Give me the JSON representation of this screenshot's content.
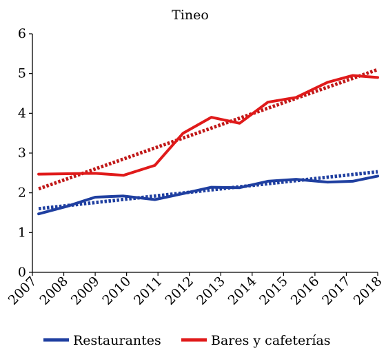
{
  "chart_data": {
    "type": "line",
    "title": "Tineo",
    "xlabel": "",
    "ylabel": "",
    "categories": [
      "2007",
      "2008",
      "2009",
      "2010",
      "2011",
      "2012",
      "2013",
      "2014",
      "2015",
      "2016",
      "2017",
      "2018"
    ],
    "x": [
      2007,
      2008,
      2009,
      2010,
      2011,
      2012,
      2013,
      2014,
      2015,
      2016,
      2017,
      2018
    ],
    "ylim": [
      0,
      6
    ],
    "yticks": [
      0,
      1,
      2,
      3,
      4,
      5,
      6
    ],
    "grid": false,
    "legend_position": "bottom",
    "series": [
      {
        "name": "Restaurantes",
        "color": "#1f3fa0",
        "style": "solid",
        "x": [
          2007.2,
          2008.1,
          2009.0,
          2009.9,
          2010.9,
          2011.8,
          2012.7,
          2013.6,
          2014.5,
          2015.4,
          2016.4,
          2017.2,
          2018.0
        ],
        "values": [
          1.47,
          1.66,
          1.89,
          1.92,
          1.83,
          1.98,
          2.14,
          2.13,
          2.29,
          2.34,
          2.27,
          2.29,
          2.42
        ]
      },
      {
        "name": "Bares y cafeterías",
        "color": "#e01a1a",
        "style": "solid",
        "x": [
          2007.2,
          2008.1,
          2009.0,
          2009.9,
          2010.9,
          2011.8,
          2012.7,
          2013.6,
          2014.5,
          2015.4,
          2016.4,
          2017.2,
          2018.0
        ],
        "values": [
          2.47,
          2.48,
          2.49,
          2.44,
          2.69,
          3.5,
          3.9,
          3.75,
          4.28,
          4.4,
          4.78,
          4.95,
          4.9
        ]
      },
      {
        "name": "",
        "color": "#1f3fa0",
        "style": "dotted",
        "x": [
          2007.2,
          2018.0
        ],
        "values": [
          1.6,
          2.53
        ]
      },
      {
        "name": "",
        "color": "#c01818",
        "style": "dotted",
        "x": [
          2007.2,
          2018.0
        ],
        "values": [
          2.1,
          5.1
        ]
      }
    ],
    "legend": [
      {
        "label": "Restaurantes",
        "color": "#1f3fa0"
      },
      {
        "label": "Bares y cafeterías",
        "color": "#e01a1a"
      }
    ]
  }
}
